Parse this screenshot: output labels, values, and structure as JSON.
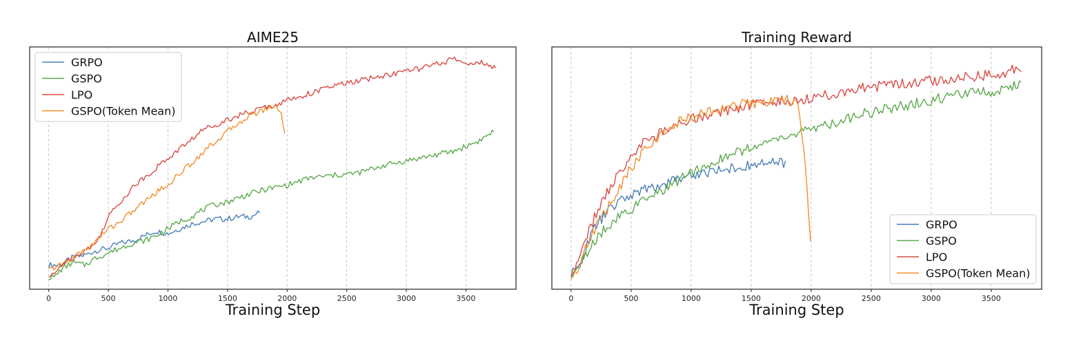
{
  "chart_data": [
    {
      "type": "line",
      "title": "AIME25",
      "xlabel": "Training Step",
      "ylabel": "",
      "xlim": [
        -160,
        3920
      ],
      "ylim": [
        0,
        1
      ],
      "xticks": [
        0,
        500,
        1000,
        1500,
        2000,
        2500,
        3000,
        3500
      ],
      "grid": "vertical dashed",
      "legend_position": "top-left",
      "series": [
        {
          "name": "GRPO",
          "color": "#4C7FB8",
          "x_end": 1780,
          "points": [
            [
              0,
              0.1
            ],
            [
              100,
              0.1
            ],
            [
              200,
              0.13
            ],
            [
              300,
              0.14
            ],
            [
              400,
              0.16
            ],
            [
              500,
              0.17
            ],
            [
              600,
              0.19
            ],
            [
              700,
              0.2
            ],
            [
              800,
              0.22
            ],
            [
              900,
              0.24
            ],
            [
              1000,
              0.23
            ],
            [
              1100,
              0.25
            ],
            [
              1200,
              0.27
            ],
            [
              1300,
              0.28
            ],
            [
              1400,
              0.29
            ],
            [
              1500,
              0.29
            ],
            [
              1600,
              0.3
            ],
            [
              1700,
              0.3
            ],
            [
              1780,
              0.32
            ]
          ]
        },
        {
          "name": "GSPO",
          "color": "#5BA84C",
          "x_end": 3740,
          "points": [
            [
              0,
              0.05
            ],
            [
              50,
              0.05
            ],
            [
              100,
              0.08
            ],
            [
              200,
              0.11
            ],
            [
              300,
              0.1
            ],
            [
              400,
              0.13
            ],
            [
              500,
              0.15
            ],
            [
              600,
              0.17
            ],
            [
              700,
              0.19
            ],
            [
              800,
              0.2
            ],
            [
              900,
              0.22
            ],
            [
              1000,
              0.25
            ],
            [
              1100,
              0.28
            ],
            [
              1200,
              0.3
            ],
            [
              1300,
              0.33
            ],
            [
              1400,
              0.35
            ],
            [
              1500,
              0.36
            ],
            [
              1600,
              0.38
            ],
            [
              1800,
              0.41
            ],
            [
              2000,
              0.43
            ],
            [
              2200,
              0.46
            ],
            [
              2400,
              0.47
            ],
            [
              2600,
              0.48
            ],
            [
              2800,
              0.51
            ],
            [
              3000,
              0.53
            ],
            [
              3200,
              0.55
            ],
            [
              3400,
              0.57
            ],
            [
              3500,
              0.59
            ],
            [
              3600,
              0.61
            ],
            [
              3700,
              0.64
            ],
            [
              3740,
              0.66
            ]
          ]
        },
        {
          "name": "LPO",
          "color": "#D94A45",
          "x_end": 3750,
          "points": [
            [
              0,
              0.05
            ],
            [
              50,
              0.06
            ],
            [
              100,
              0.1
            ],
            [
              200,
              0.13
            ],
            [
              300,
              0.16
            ],
            [
              400,
              0.19
            ],
            [
              500,
              0.3
            ],
            [
              600,
              0.36
            ],
            [
              700,
              0.42
            ],
            [
              800,
              0.46
            ],
            [
              900,
              0.5
            ],
            [
              1000,
              0.54
            ],
            [
              1100,
              0.58
            ],
            [
              1200,
              0.62
            ],
            [
              1300,
              0.66
            ],
            [
              1400,
              0.68
            ],
            [
              1500,
              0.7
            ],
            [
              1600,
              0.72
            ],
            [
              1700,
              0.73
            ],
            [
              1800,
              0.75
            ],
            [
              1900,
              0.76
            ],
            [
              2000,
              0.78
            ],
            [
              2200,
              0.81
            ],
            [
              2400,
              0.84
            ],
            [
              2600,
              0.86
            ],
            [
              2800,
              0.88
            ],
            [
              3000,
              0.9
            ],
            [
              3200,
              0.92
            ],
            [
              3400,
              0.95
            ],
            [
              3500,
              0.93
            ],
            [
              3600,
              0.94
            ],
            [
              3700,
              0.92
            ],
            [
              3750,
              0.91
            ]
          ]
        },
        {
          "name": "GSPO(Token Mean)",
          "color": "#F28E2B",
          "x_end": 1980,
          "points": [
            [
              0,
              0.08
            ],
            [
              100,
              0.1
            ],
            [
              200,
              0.13
            ],
            [
              300,
              0.16
            ],
            [
              400,
              0.2
            ],
            [
              500,
              0.25
            ],
            [
              600,
              0.28
            ],
            [
              700,
              0.32
            ],
            [
              800,
              0.36
            ],
            [
              900,
              0.4
            ],
            [
              1000,
              0.43
            ],
            [
              1100,
              0.48
            ],
            [
              1200,
              0.52
            ],
            [
              1300,
              0.57
            ],
            [
              1400,
              0.61
            ],
            [
              1500,
              0.65
            ],
            [
              1600,
              0.69
            ],
            [
              1700,
              0.72
            ],
            [
              1800,
              0.74
            ],
            [
              1900,
              0.76
            ],
            [
              1950,
              0.73
            ],
            [
              1980,
              0.64
            ]
          ]
        }
      ]
    },
    {
      "type": "line",
      "title": "Training Reward",
      "xlabel": "Training Step",
      "ylabel": "",
      "xlim": [
        -160,
        3920
      ],
      "ylim": [
        0,
        1
      ],
      "xticks": [
        0,
        500,
        1000,
        1500,
        2000,
        2500,
        3000,
        3500
      ],
      "grid": "vertical dashed",
      "legend_position": "bottom-right",
      "series": [
        {
          "name": "GRPO",
          "color": "#4C7FB8",
          "x_end": 1790,
          "points": [
            [
              0,
              0.06
            ],
            [
              50,
              0.08
            ],
            [
              100,
              0.14
            ],
            [
              200,
              0.26
            ],
            [
              300,
              0.32
            ],
            [
              400,
              0.36
            ],
            [
              500,
              0.39
            ],
            [
              600,
              0.41
            ],
            [
              700,
              0.42
            ],
            [
              800,
              0.44
            ],
            [
              900,
              0.46
            ],
            [
              1000,
              0.47
            ],
            [
              1100,
              0.48
            ],
            [
              1200,
              0.49
            ],
            [
              1300,
              0.5
            ],
            [
              1400,
              0.5
            ],
            [
              1500,
              0.51
            ],
            [
              1600,
              0.52
            ],
            [
              1700,
              0.52
            ],
            [
              1790,
              0.52
            ]
          ]
        },
        {
          "name": "GSPO",
          "color": "#5BA84C",
          "x_end": 3760,
          "points": [
            [
              0,
              0.06
            ],
            [
              50,
              0.08
            ],
            [
              100,
              0.12
            ],
            [
              200,
              0.2
            ],
            [
              300,
              0.26
            ],
            [
              400,
              0.3
            ],
            [
              500,
              0.33
            ],
            [
              600,
              0.36
            ],
            [
              700,
              0.39
            ],
            [
              800,
              0.42
            ],
            [
              900,
              0.45
            ],
            [
              1000,
              0.48
            ],
            [
              1200,
              0.53
            ],
            [
              1400,
              0.57
            ],
            [
              1600,
              0.6
            ],
            [
              1800,
              0.63
            ],
            [
              2000,
              0.66
            ],
            [
              2200,
              0.69
            ],
            [
              2400,
              0.72
            ],
            [
              2600,
              0.74
            ],
            [
              2800,
              0.76
            ],
            [
              3000,
              0.78
            ],
            [
              3200,
              0.8
            ],
            [
              3400,
              0.81
            ],
            [
              3600,
              0.82
            ],
            [
              3700,
              0.84
            ],
            [
              3760,
              0.84
            ]
          ]
        },
        {
          "name": "LPO",
          "color": "#D94A45",
          "x_end": 3760,
          "points": [
            [
              0,
              0.06
            ],
            [
              50,
              0.1
            ],
            [
              100,
              0.18
            ],
            [
              200,
              0.3
            ],
            [
              300,
              0.4
            ],
            [
              400,
              0.48
            ],
            [
              500,
              0.55
            ],
            [
              600,
              0.6
            ],
            [
              700,
              0.63
            ],
            [
              800,
              0.66
            ],
            [
              900,
              0.68
            ],
            [
              1000,
              0.7
            ],
            [
              1200,
              0.73
            ],
            [
              1400,
              0.75
            ],
            [
              1600,
              0.77
            ],
            [
              1800,
              0.78
            ],
            [
              2000,
              0.79
            ],
            [
              2200,
              0.81
            ],
            [
              2400,
              0.83
            ],
            [
              2600,
              0.84
            ],
            [
              2800,
              0.85
            ],
            [
              3000,
              0.86
            ],
            [
              3200,
              0.87
            ],
            [
              3400,
              0.88
            ],
            [
              3600,
              0.89
            ],
            [
              3700,
              0.91
            ],
            [
              3760,
              0.9
            ]
          ]
        },
        {
          "name": "GSPO(Token Mean)",
          "color": "#F28E2B",
          "x_end": 2000,
          "points": [
            [
              0,
              0.06
            ],
            [
              50,
              0.08
            ],
            [
              100,
              0.15
            ],
            [
              200,
              0.25
            ],
            [
              300,
              0.33
            ],
            [
              400,
              0.42
            ],
            [
              500,
              0.5
            ],
            [
              600,
              0.57
            ],
            [
              700,
              0.62
            ],
            [
              800,
              0.66
            ],
            [
              900,
              0.69
            ],
            [
              1000,
              0.71
            ],
            [
              1200,
              0.74
            ],
            [
              1400,
              0.76
            ],
            [
              1600,
              0.77
            ],
            [
              1800,
              0.78
            ],
            [
              1900,
              0.76
            ],
            [
              1950,
              0.5
            ],
            [
              1980,
              0.3
            ],
            [
              2000,
              0.15
            ]
          ]
        }
      ]
    }
  ]
}
